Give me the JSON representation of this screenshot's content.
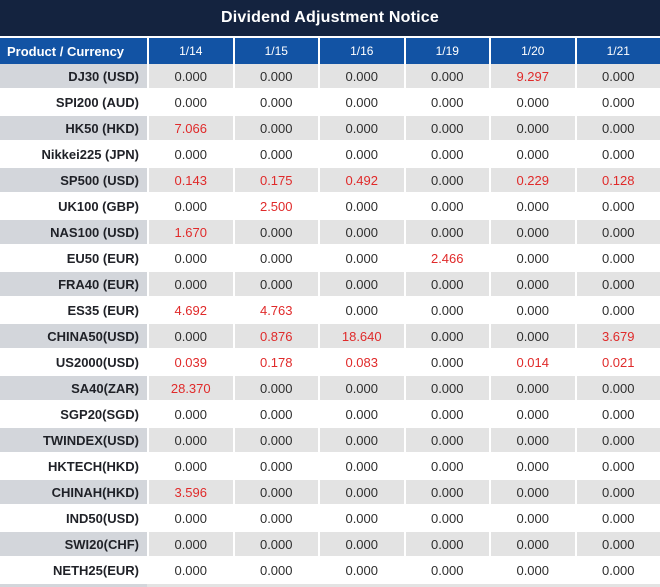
{
  "colors": {
    "title_bar_bg": "#14233f",
    "header_bg": "#1253a4",
    "odd_row_product_bg": "#d3d6db",
    "odd_row_value_bg": "#e3e3e3",
    "even_row_bg": "#ffffff",
    "separator": "#ffffff",
    "value_text": "#2e2e2e",
    "nonzero_value_text": "#e02a2a",
    "header_text": "#ffffff"
  },
  "chart_data": {
    "type": "table",
    "title": "Dividend Adjustment Notice",
    "columns": [
      "Product / Currency",
      "1/14",
      "1/15",
      "1/16",
      "1/19",
      "1/20",
      "1/21"
    ],
    "rows": [
      {
        "product": "DJ30 (USD)",
        "values": [
          "0.000",
          "0.000",
          "0.000",
          "0.000",
          "9.297",
          "0.000"
        ]
      },
      {
        "product": "SPI200 (AUD)",
        "values": [
          "0.000",
          "0.000",
          "0.000",
          "0.000",
          "0.000",
          "0.000"
        ]
      },
      {
        "product": "HK50 (HKD)",
        "values": [
          "7.066",
          "0.000",
          "0.000",
          "0.000",
          "0.000",
          "0.000"
        ]
      },
      {
        "product": "Nikkei225 (JPN)",
        "values": [
          "0.000",
          "0.000",
          "0.000",
          "0.000",
          "0.000",
          "0.000"
        ]
      },
      {
        "product": "SP500 (USD)",
        "values": [
          "0.143",
          "0.175",
          "0.492",
          "0.000",
          "0.229",
          "0.128"
        ]
      },
      {
        "product": "UK100 (GBP)",
        "values": [
          "0.000",
          "2.500",
          "0.000",
          "0.000",
          "0.000",
          "0.000"
        ]
      },
      {
        "product": "NAS100 (USD)",
        "values": [
          "1.670",
          "0.000",
          "0.000",
          "0.000",
          "0.000",
          "0.000"
        ]
      },
      {
        "product": "EU50 (EUR)",
        "values": [
          "0.000",
          "0.000",
          "0.000",
          "2.466",
          "0.000",
          "0.000"
        ]
      },
      {
        "product": "FRA40 (EUR)",
        "values": [
          "0.000",
          "0.000",
          "0.000",
          "0.000",
          "0.000",
          "0.000"
        ]
      },
      {
        "product": "ES35 (EUR)",
        "values": [
          "4.692",
          "4.763",
          "0.000",
          "0.000",
          "0.000",
          "0.000"
        ]
      },
      {
        "product": "CHINA50(USD)",
        "values": [
          "0.000",
          "0.876",
          "18.640",
          "0.000",
          "0.000",
          "3.679"
        ]
      },
      {
        "product": "US2000(USD)",
        "values": [
          "0.039",
          "0.178",
          "0.083",
          "0.000",
          "0.014",
          "0.021"
        ]
      },
      {
        "product": "SA40(ZAR)",
        "values": [
          "28.370",
          "0.000",
          "0.000",
          "0.000",
          "0.000",
          "0.000"
        ]
      },
      {
        "product": "SGP20(SGD)",
        "values": [
          "0.000",
          "0.000",
          "0.000",
          "0.000",
          "0.000",
          "0.000"
        ]
      },
      {
        "product": "TWINDEX(USD)",
        "values": [
          "0.000",
          "0.000",
          "0.000",
          "0.000",
          "0.000",
          "0.000"
        ]
      },
      {
        "product": "HKTECH(HKD)",
        "values": [
          "0.000",
          "0.000",
          "0.000",
          "0.000",
          "0.000",
          "0.000"
        ]
      },
      {
        "product": "CHINAH(HKD)",
        "values": [
          "3.596",
          "0.000",
          "0.000",
          "0.000",
          "0.000",
          "0.000"
        ]
      },
      {
        "product": "IND50(USD)",
        "values": [
          "0.000",
          "0.000",
          "0.000",
          "0.000",
          "0.000",
          "0.000"
        ]
      },
      {
        "product": "SWI20(CHF)",
        "values": [
          "0.000",
          "0.000",
          "0.000",
          "0.000",
          "0.000",
          "0.000"
        ]
      },
      {
        "product": "NETH25(EUR)",
        "values": [
          "0.000",
          "0.000",
          "0.000",
          "0.000",
          "0.000",
          "0.000"
        ]
      }
    ]
  }
}
